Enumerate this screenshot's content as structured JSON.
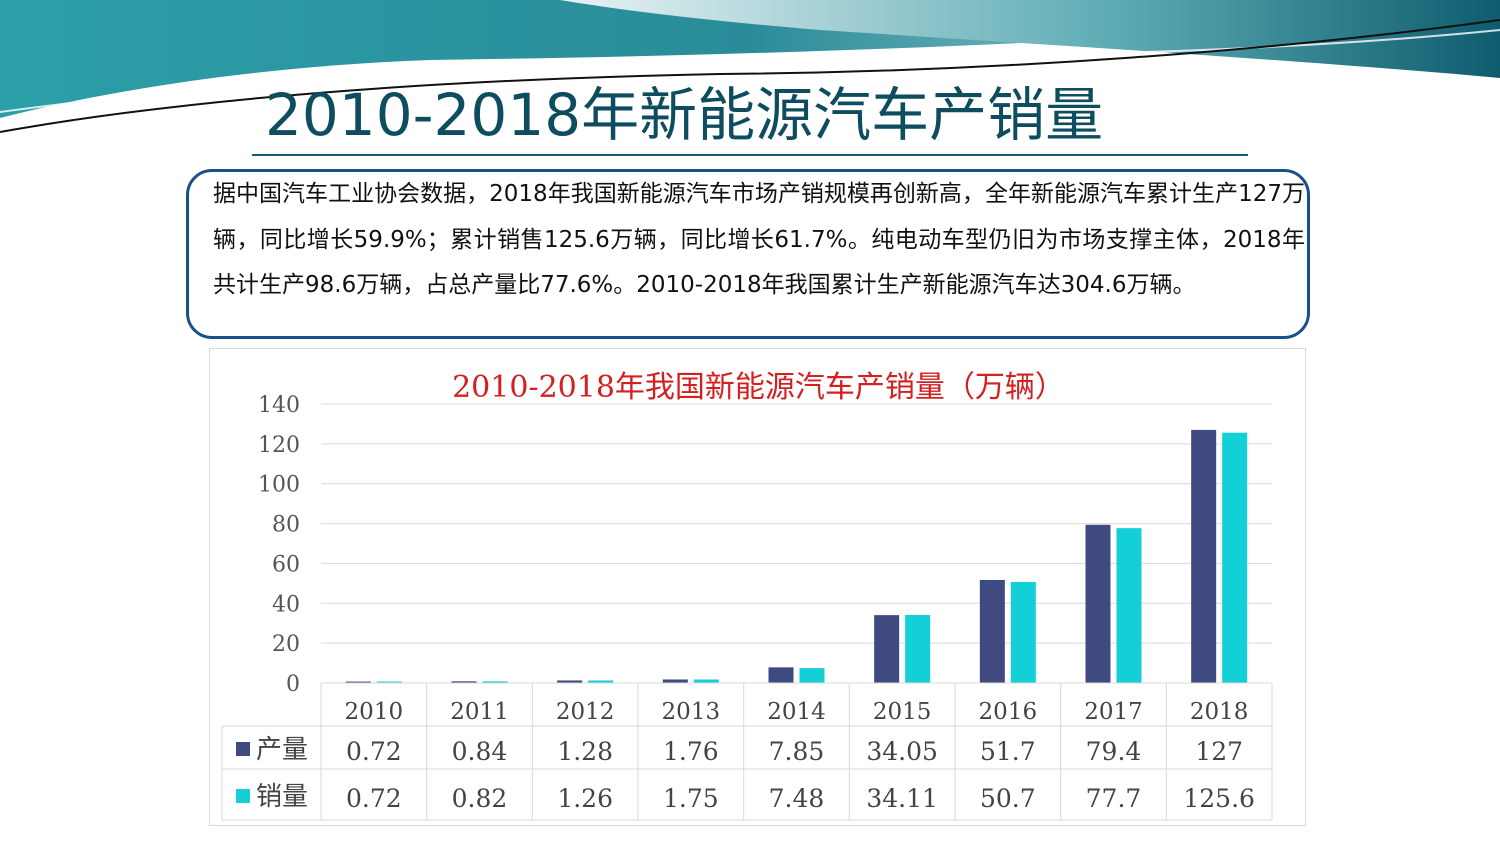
{
  "slide": {
    "title": "2010-2018年新能源汽车产销量",
    "title_color": "#0e4d5f",
    "accent_dark": "#0f5f73",
    "accent_teal": "#21a1a6",
    "description": "据中国汽车工业协会数据，2018年我国新能源汽车市场产销规模再创新高，全年新能源汽车累计生产127万辆，同比增长59.9%；累计销售125.6万辆，同比增长61.7%。纯电动车型仍旧为市场支撑主体，2018年共计生产98.6万辆，占总产量比77.6%。2010-2018年我国累计生产新能源汽车达304.6万辆。",
    "box_border_color": "#1a4f8c"
  },
  "chart_data": {
    "type": "bar",
    "title": "2010-2018年我国新能源汽车产销量（万辆）",
    "title_color": "#d42020",
    "categories": [
      "2010",
      "2011",
      "2012",
      "2013",
      "2014",
      "2015",
      "2016",
      "2017",
      "2018"
    ],
    "series": [
      {
        "name": "产量",
        "color": "#3f4a80",
        "values": [
          0.72,
          0.84,
          1.28,
          1.76,
          7.85,
          34.05,
          51.7,
          79.4,
          127
        ],
        "labels": [
          "0.72",
          "0.84",
          "1.28",
          "1.76",
          "7.85",
          "34.05",
          "51.7",
          "79.4",
          "127"
        ]
      },
      {
        "name": "销量",
        "color": "#13cfd6",
        "values": [
          0.72,
          0.82,
          1.26,
          1.75,
          7.48,
          34.11,
          50.7,
          77.7,
          125.6
        ],
        "labels": [
          "0.72",
          "0.82",
          "1.26",
          "1.75",
          "7.48",
          "34.11",
          "50.7",
          "77.7",
          "125.6"
        ]
      }
    ],
    "yticks": [
      "0",
      "20",
      "40",
      "60",
      "80",
      "100",
      "120",
      "140"
    ],
    "ylim": [
      0,
      140
    ],
    "grid": true,
    "data_table": true
  }
}
